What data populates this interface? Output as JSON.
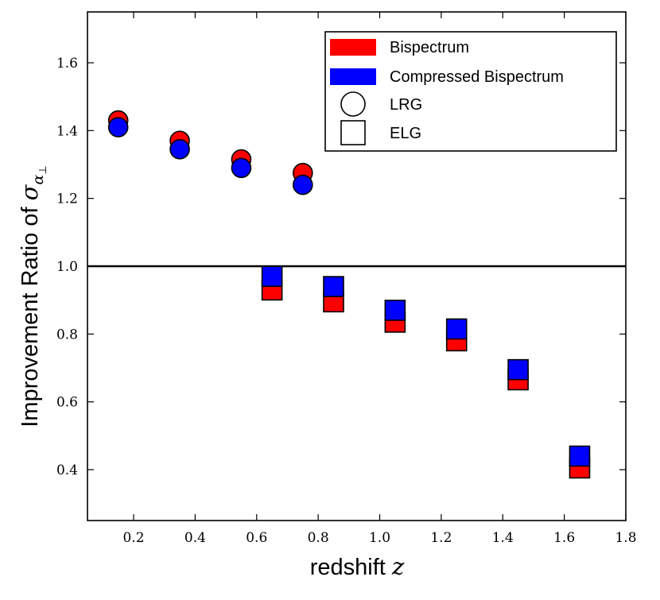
{
  "chart_data": {
    "type": "scatter",
    "title": "",
    "xlabel": "redshift",
    "xlabel_symbol": "z",
    "ylabel": "Improvement Ratio of",
    "ylabel_symbol": "σ",
    "ylabel_subscript": "α",
    "ylabel_subsubscript": "⊥",
    "xlim": [
      0.05,
      1.8
    ],
    "ylim": [
      0.25,
      1.75
    ],
    "xticks": [
      0.2,
      0.4,
      0.6,
      0.8,
      1.0,
      1.2,
      1.4,
      1.6,
      1.8
    ],
    "xtick_labels": [
      "0.2",
      "0.4",
      "0.6",
      "0.8",
      "1.0",
      "1.2",
      "1.4",
      "1.6",
      "1.8"
    ],
    "yticks": [
      0.4,
      0.6,
      0.8,
      1.0,
      1.2,
      1.4,
      1.6
    ],
    "ytick_labels": [
      "0.4",
      "0.6",
      "0.8",
      "1.0",
      "1.2",
      "1.4",
      "1.6"
    ],
    "reference_line": 1.0,
    "colors": {
      "bispectrum": "#ff0000",
      "compressed": "#0000ff",
      "reference": "#000000"
    },
    "series": [
      {
        "name": "Bispectrum",
        "tracer": "LRG",
        "marker": "circle",
        "color": "#ff0000",
        "x": [
          0.15,
          0.35,
          0.55,
          0.75
        ],
        "y": [
          1.43,
          1.37,
          1.315,
          1.275
        ]
      },
      {
        "name": "Compressed Bispectrum",
        "tracer": "LRG",
        "marker": "circle",
        "color": "#0000ff",
        "x": [
          0.15,
          0.35,
          0.55,
          0.75
        ],
        "y": [
          1.41,
          1.345,
          1.29,
          1.24
        ]
      },
      {
        "name": "Bispectrum",
        "tracer": "ELG",
        "marker": "square",
        "color": "#ff0000",
        "x": [
          0.65,
          0.85,
          1.05,
          1.25,
          1.45,
          1.65
        ],
        "y": [
          0.93,
          0.895,
          0.835,
          0.78,
          0.665,
          0.405
        ]
      },
      {
        "name": "Compressed Bispectrum",
        "tracer": "ELG",
        "marker": "square",
        "color": "#0000ff",
        "x": [
          0.65,
          0.85,
          1.05,
          1.25,
          1.45,
          1.65
        ],
        "y": [
          0.97,
          0.94,
          0.87,
          0.815,
          0.695,
          0.44
        ]
      }
    ],
    "legend": {
      "placement": "top-right",
      "entries": [
        {
          "label": "Bispectrum",
          "kind": "patch",
          "color": "#ff0000"
        },
        {
          "label": "Compressed Bispectrum",
          "kind": "patch",
          "color": "#0000ff"
        },
        {
          "label": "LRG",
          "kind": "circle",
          "color": "#ffffff"
        },
        {
          "label": "ELG",
          "kind": "square",
          "color": "#ffffff"
        }
      ]
    }
  }
}
